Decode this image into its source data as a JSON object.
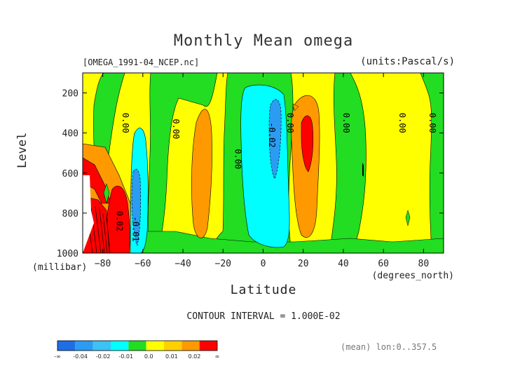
{
  "chart_data": {
    "type": "heatmap",
    "title": "Monthly Mean omega",
    "file_label": "[OMEGA_1991-04_NCEP.nc]",
    "units_label": "(units:Pascal/s)",
    "xlabel": "Latitude",
    "x_units": "(degrees_north)",
    "ylabel": "Level",
    "y_units": "(millibar)",
    "xlim": [
      -90,
      90
    ],
    "ylim": [
      1000,
      100
    ],
    "x_ticks": [
      -80,
      -60,
      -40,
      -20,
      0,
      20,
      40,
      60,
      80
    ],
    "y_ticks": [
      200,
      400,
      600,
      800,
      1000
    ],
    "contour_interval_label": "CONTOUR INTERVAL = 1.000E-02",
    "mean_label": "(mean) lon:0..357.5",
    "colorbar": {
      "colors": [
        "#1e6ee6",
        "#2b9cf2",
        "#3cc2f5",
        "#00ffff",
        "#22dd22",
        "#ffff00",
        "#ffd000",
        "#ff9900",
        "#ff0000"
      ],
      "tick_labels": [
        "-∞",
        "-0.04",
        "-0.02",
        "-0.01",
        "0.0",
        "0.01",
        "0.02",
        "∞"
      ]
    },
    "contour_labels": [
      {
        "text": "0.00",
        "lat": -70,
        "lev": 350
      },
      {
        "text": "0.00",
        "lat": -45,
        "lev": 380
      },
      {
        "text": "0.00",
        "lat": -14,
        "lev": 530
      },
      {
        "text": "-0.02",
        "lat": 3,
        "lev": 410
      },
      {
        "text": "0.00",
        "lat": 12,
        "lev": 350
      },
      {
        "text": "0.00",
        "lat": 40,
        "lev": 350
      },
      {
        "text": "0.00",
        "lat": 68,
        "lev": 350
      },
      {
        "text": "0.00",
        "lat": 83,
        "lev": 350
      },
      {
        "text": "-0.01",
        "lat": -65,
        "lev": 880
      },
      {
        "text": "0.02",
        "lat": -73,
        "lev": 840
      }
    ]
  }
}
